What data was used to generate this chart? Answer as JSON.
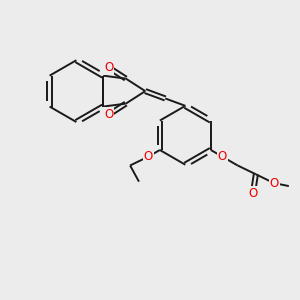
{
  "background_color": "#ececec",
  "bond_color": "#1a1a1a",
  "heteroatom_color": "#ee0000",
  "bond_width": 1.4,
  "figsize": [
    3.0,
    3.0
  ],
  "dpi": 100,
  "xlim": [
    0,
    10
  ],
  "ylim": [
    0,
    10
  ]
}
